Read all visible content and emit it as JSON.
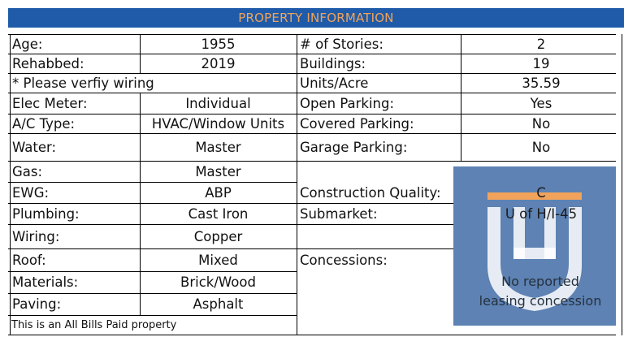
{
  "header": {
    "title": "PROPERTY INFORMATION"
  },
  "left": {
    "age_label": "Age:",
    "age_value": "1955",
    "rehabbed_label": "Rehabbed:",
    "rehabbed_value": "2019",
    "wiring_note": "* Please verfiy wiring",
    "elec_label": "Elec Meter:",
    "elec_value": "Individual",
    "ac_label": "A/C Type:",
    "ac_value": "HVAC/Window Units",
    "water_label": "Water:",
    "water_value": "Master",
    "gas_label": "Gas:",
    "gas_value": "Master",
    "ewg_label": "EWG:",
    "ewg_value": "ABP",
    "plumbing_label": "Plumbing:",
    "plumbing_value": "Cast Iron",
    "wiring_label": "Wiring:",
    "wiring_value": "Copper",
    "roof_label": "Roof:",
    "roof_value": "Mixed",
    "materials_label": "Materials:",
    "materials_value": "Brick/Wood",
    "paving_label": "Paving:",
    "paving_value": "Asphalt",
    "footnote": "This is an All Bills Paid property"
  },
  "right": {
    "stories_label": "# of Stories:",
    "stories_value": "2",
    "buildings_label": "Buildings:",
    "buildings_value": "19",
    "units_label": "Units/Acre",
    "units_value": "35.59",
    "open_label": "Open Parking:",
    "open_value": "Yes",
    "covered_label": "Covered Parking:",
    "covered_value": "No",
    "garage_label": "Garage Parking:",
    "garage_value": "No",
    "quality_label": "Construction Quality:",
    "quality_value": "C",
    "submarket_label": "Submarket:",
    "submarket_value": "U of H/I-45",
    "concessions_label": "Concessions:",
    "concessions_line1": "No reported",
    "concessions_line2": "leasing concession"
  },
  "colors": {
    "header_bg": "#1f5ba8",
    "header_text": "#f1a35b",
    "watermark": "#2f5f9e",
    "watermark_accent": "#f1a35b"
  }
}
